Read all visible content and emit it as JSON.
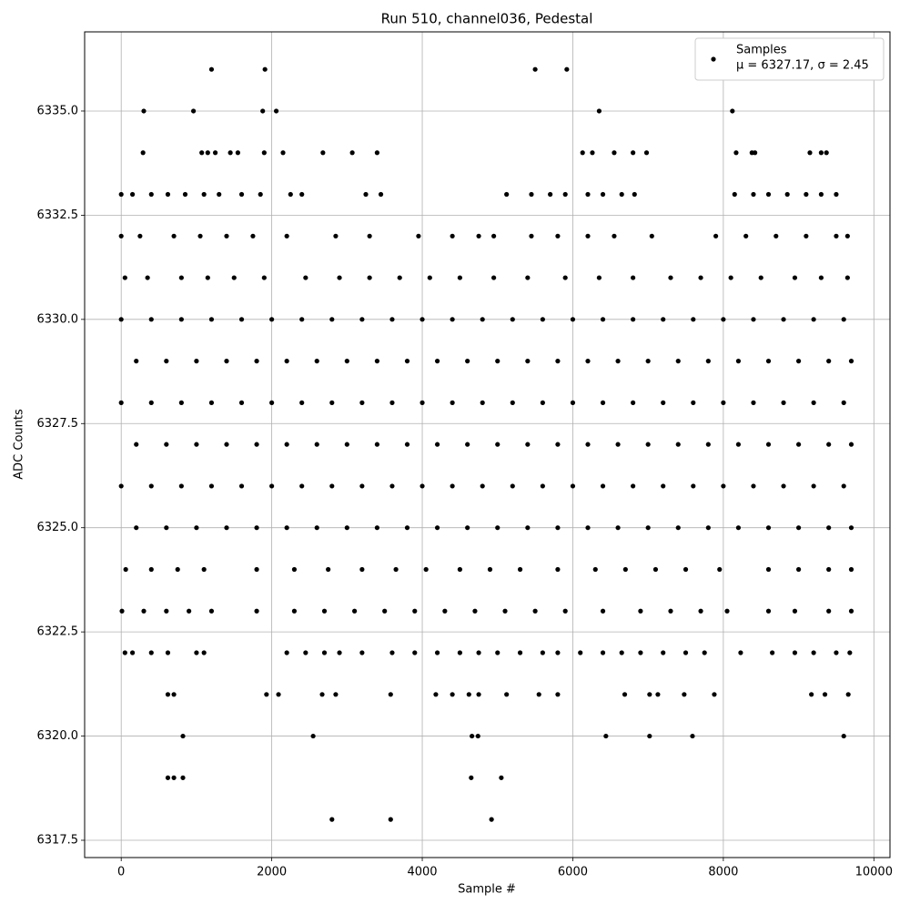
{
  "chart_data": {
    "type": "scatter",
    "title": "Run 510, channel036, Pedestal",
    "x_label": "Sample #",
    "y_label": "ADC Counts",
    "xlim": [
      -486,
      10214
    ],
    "ylim": [
      6317.085,
      6336.9
    ],
    "xticks": [
      0,
      2000,
      4000,
      6000,
      8000,
      10000
    ],
    "yticks": [
      {
        "value": 6317.5,
        "label": "6317.5"
      },
      {
        "value": 6320,
        "label": "6320.0"
      },
      {
        "value": 6322.5,
        "label": "6322.5"
      },
      {
        "value": 6325,
        "label": "6325.0"
      },
      {
        "value": 6327.5,
        "label": "6327.5"
      },
      {
        "value": 6330,
        "label": "6330.0"
      },
      {
        "value": 6332.5,
        "label": "6332.5"
      },
      {
        "value": 6335,
        "label": "6335.0"
      }
    ],
    "grid": true,
    "legend_position": "upper right",
    "legend_stats": "μ = 6327.17, σ = 2.45",
    "series": [
      {
        "name": "Samples",
        "color": "#000000",
        "x": [
          0,
          400,
          800,
          1200,
          1600,
          2000,
          2400,
          2800,
          3200,
          3600,
          4000,
          4400,
          4800,
          5200,
          5600,
          6000,
          6400,
          6800,
          7200,
          7600,
          8000,
          8400,
          8800,
          9200,
          9600,
          200,
          600,
          1000,
          1400,
          1800,
          2200,
          2600,
          3000,
          3400,
          3800,
          4200,
          4600,
          5000,
          5400,
          5800,
          6200,
          6600,
          7000,
          7400,
          7800,
          8200,
          8600,
          9000,
          9400,
          9700,
          0,
          400,
          800,
          1200,
          1600,
          2000,
          2400,
          2800,
          3200,
          3600,
          4000,
          4400,
          4800,
          5200,
          5600,
          6000,
          6400,
          6800,
          7200,
          7600,
          8000,
          8400,
          8800,
          9200,
          9600,
          200,
          600,
          1000,
          1400,
          1800,
          2200,
          2600,
          3000,
          3400,
          3800,
          4200,
          4600,
          5000,
          5400,
          5800,
          6200,
          6600,
          7000,
          7400,
          7800,
          8200,
          8600,
          9000,
          9400,
          9700,
          0,
          400,
          800,
          1200,
          1600,
          2000,
          2400,
          2800,
          3200,
          3600,
          4000,
          4400,
          4800,
          5200,
          5600,
          6000,
          6400,
          6800,
          7200,
          7600,
          8000,
          8400,
          8800,
          9200,
          9600,
          200,
          600,
          1000,
          1400,
          1800,
          2200,
          2600,
          3000,
          3400,
          3800,
          4200,
          4600,
          5000,
          5400,
          5800,
          6200,
          6600,
          7000,
          7400,
          7800,
          8200,
          8600,
          9000,
          9400,
          9700,
          50,
          350,
          800,
          1150,
          1500,
          1900,
          2450,
          2900,
          3300,
          3700,
          4100,
          4500,
          4950,
          5400,
          5900,
          6350,
          6800,
          7300,
          7700,
          8100,
          8500,
          8950,
          9300,
          9650,
          60,
          400,
          750,
          1100,
          1800,
          2300,
          2750,
          3200,
          3650,
          4050,
          4500,
          4900,
          5300,
          5800,
          6300,
          6700,
          7100,
          7500,
          7950,
          8600,
          9000,
          9400,
          9700,
          0,
          250,
          700,
          1050,
          1400,
          1750,
          2200,
          2850,
          3300,
          3950,
          4400,
          4750,
          4950,
          5450,
          5800,
          6200,
          6550,
          7050,
          7900,
          8300,
          8700,
          9100,
          9500,
          9650,
          10,
          300,
          600,
          900,
          1200,
          1800,
          2300,
          2700,
          3100,
          3500,
          3900,
          4300,
          4700,
          5100,
          5500,
          5900,
          6400,
          6900,
          7300,
          7700,
          8050,
          8600,
          8950,
          9400,
          9700,
          0,
          150,
          400,
          620,
          850,
          1100,
          1300,
          1600,
          1850,
          2250,
          2400,
          3250,
          3450,
          5120,
          5450,
          5700,
          5900,
          6200,
          6400,
          6650,
          6820,
          8150,
          8400,
          8600,
          8850,
          9100,
          9300,
          9500,
          290,
          1070,
          1150,
          1250,
          1450,
          1550,
          1900,
          2150,
          2680,
          3070,
          3400,
          6130,
          6260,
          6550,
          6800,
          6980,
          8170,
          8380,
          8420,
          9150,
          9300,
          9370,
          50,
          150,
          400,
          620,
          1000,
          1100,
          2200,
          2450,
          2700,
          2900,
          3200,
          3600,
          3900,
          4200,
          4500,
          4750,
          5000,
          5300,
          5600,
          5800,
          6100,
          6400,
          6650,
          6900,
          7200,
          7500,
          7750,
          8230,
          8650,
          8950,
          9200,
          9500,
          9680,
          300,
          960,
          1880,
          2060,
          6350,
          8120,
          1200,
          1910,
          5500,
          5920,
          620,
          700,
          1930,
          2090,
          2670,
          2850,
          3580,
          4180,
          4400,
          4620,
          4750,
          5120,
          5550,
          5800,
          6690,
          7020,
          7130,
          7480,
          7880,
          9170,
          9350,
          9660,
          820,
          2550,
          4660,
          4740,
          6440,
          7020,
          7590,
          9600,
          620,
          700,
          820,
          4650,
          5050,
          2800,
          3580,
          4920
        ],
        "values": [
          6330,
          6330,
          6330,
          6330,
          6330,
          6330,
          6330,
          6330,
          6330,
          6330,
          6330,
          6330,
          6330,
          6330,
          6330,
          6330,
          6330,
          6330,
          6330,
          6330,
          6330,
          6330,
          6330,
          6330,
          6330,
          6329,
          6329,
          6329,
          6329,
          6329,
          6329,
          6329,
          6329,
          6329,
          6329,
          6329,
          6329,
          6329,
          6329,
          6329,
          6329,
          6329,
          6329,
          6329,
          6329,
          6329,
          6329,
          6329,
          6329,
          6329,
          6328,
          6328,
          6328,
          6328,
          6328,
          6328,
          6328,
          6328,
          6328,
          6328,
          6328,
          6328,
          6328,
          6328,
          6328,
          6328,
          6328,
          6328,
          6328,
          6328,
          6328,
          6328,
          6328,
          6328,
          6328,
          6327,
          6327,
          6327,
          6327,
          6327,
          6327,
          6327,
          6327,
          6327,
          6327,
          6327,
          6327,
          6327,
          6327,
          6327,
          6327,
          6327,
          6327,
          6327,
          6327,
          6327,
          6327,
          6327,
          6327,
          6327,
          6326,
          6326,
          6326,
          6326,
          6326,
          6326,
          6326,
          6326,
          6326,
          6326,
          6326,
          6326,
          6326,
          6326,
          6326,
          6326,
          6326,
          6326,
          6326,
          6326,
          6326,
          6326,
          6326,
          6326,
          6326,
          6325,
          6325,
          6325,
          6325,
          6325,
          6325,
          6325,
          6325,
          6325,
          6325,
          6325,
          6325,
          6325,
          6325,
          6325,
          6325,
          6325,
          6325,
          6325,
          6325,
          6325,
          6325,
          6325,
          6325,
          6325,
          6331,
          6331,
          6331,
          6331,
          6331,
          6331,
          6331,
          6331,
          6331,
          6331,
          6331,
          6331,
          6331,
          6331,
          6331,
          6331,
          6331,
          6331,
          6331,
          6331,
          6331,
          6331,
          6331,
          6331,
          6324,
          6324,
          6324,
          6324,
          6324,
          6324,
          6324,
          6324,
          6324,
          6324,
          6324,
          6324,
          6324,
          6324,
          6324,
          6324,
          6324,
          6324,
          6324,
          6324,
          6324,
          6324,
          6324,
          6332,
          6332,
          6332,
          6332,
          6332,
          6332,
          6332,
          6332,
          6332,
          6332,
          6332,
          6332,
          6332,
          6332,
          6332,
          6332,
          6332,
          6332,
          6332,
          6332,
          6332,
          6332,
          6332,
          6332,
          6323,
          6323,
          6323,
          6323,
          6323,
          6323,
          6323,
          6323,
          6323,
          6323,
          6323,
          6323,
          6323,
          6323,
          6323,
          6323,
          6323,
          6323,
          6323,
          6323,
          6323,
          6323,
          6323,
          6323,
          6323,
          6333,
          6333,
          6333,
          6333,
          6333,
          6333,
          6333,
          6333,
          6333,
          6333,
          6333,
          6333,
          6333,
          6333,
          6333,
          6333,
          6333,
          6333,
          6333,
          6333,
          6333,
          6333,
          6333,
          6333,
          6333,
          6333,
          6333,
          6333,
          6334,
          6334,
          6334,
          6334,
          6334,
          6334,
          6334,
          6334,
          6334,
          6334,
          6334,
          6334,
          6334,
          6334,
          6334,
          6334,
          6334,
          6334,
          6334,
          6334,
          6334,
          6334,
          6322,
          6322,
          6322,
          6322,
          6322,
          6322,
          6322,
          6322,
          6322,
          6322,
          6322,
          6322,
          6322,
          6322,
          6322,
          6322,
          6322,
          6322,
          6322,
          6322,
          6322,
          6322,
          6322,
          6322,
          6322,
          6322,
          6322,
          6322,
          6322,
          6322,
          6322,
          6322,
          6322,
          6335,
          6335,
          6335,
          6335,
          6335,
          6335,
          6336,
          6336,
          6336,
          6336,
          6321,
          6321,
          6321,
          6321,
          6321,
          6321,
          6321,
          6321,
          6321,
          6321,
          6321,
          6321,
          6321,
          6321,
          6321,
          6321,
          6321,
          6321,
          6321,
          6321,
          6321,
          6321,
          6320,
          6320,
          6320,
          6320,
          6320,
          6320,
          6320,
          6320,
          6319,
          6319,
          6319,
          6319,
          6319,
          6318,
          6318,
          6318
        ]
      }
    ]
  }
}
